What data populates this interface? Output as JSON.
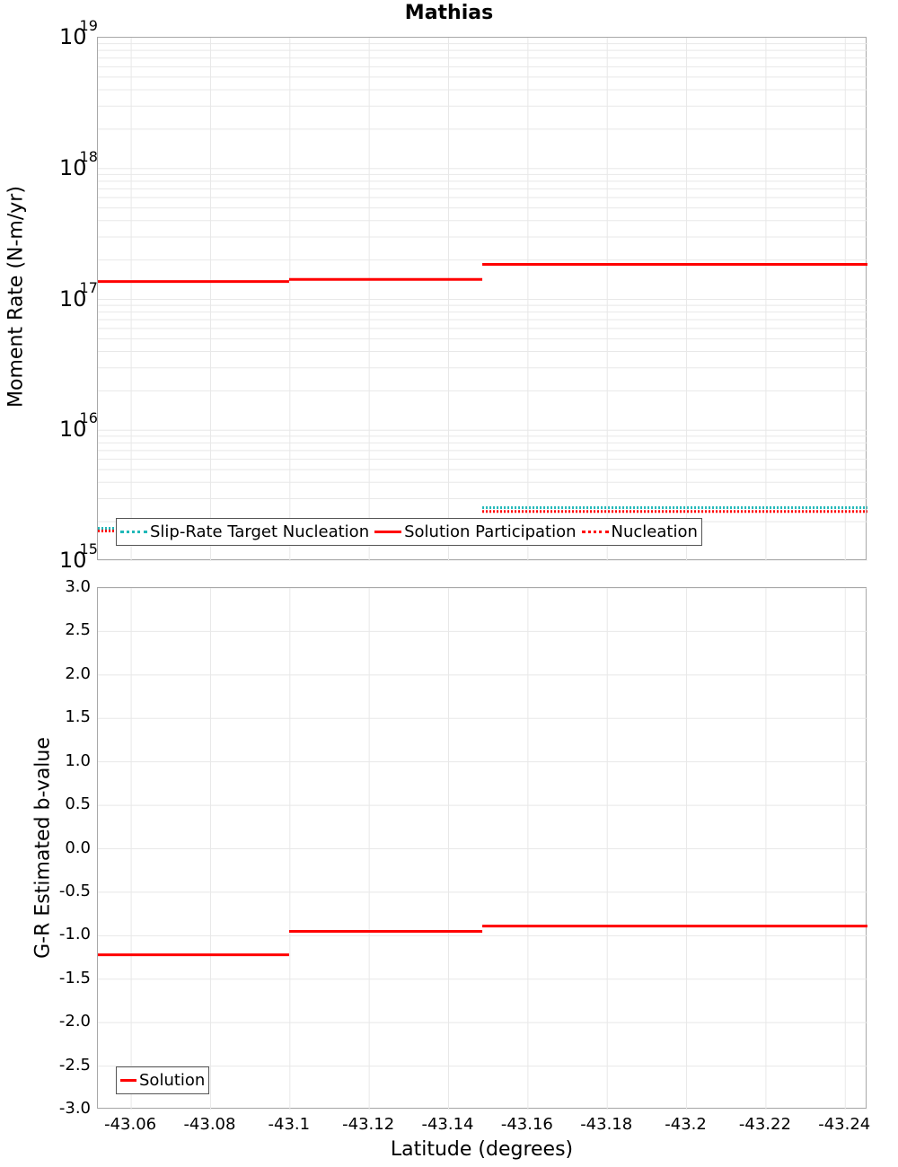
{
  "title": "Mathias",
  "colors": {
    "solution": "#ff0000",
    "target": "#20b8b8",
    "nucleation": "#ff0000",
    "grid": "#e8e8e8",
    "frame": "#a8a8a8"
  },
  "top": {
    "ylabel": "Moment Rate (N-m/yr)",
    "yticks": [
      {
        "base": "10",
        "exp": "19"
      },
      {
        "base": "10",
        "exp": "18"
      },
      {
        "base": "10",
        "exp": "17"
      },
      {
        "base": "10",
        "exp": "16"
      },
      {
        "base": "10",
        "exp": "15"
      }
    ],
    "legend": {
      "target": "Slip-Rate Target Nucleation",
      "participation": "Solution Participation",
      "nucleation": "Nucleation"
    }
  },
  "bottom": {
    "ylabel": "G-R Estimated b-value",
    "yticks": [
      "3.0",
      "2.5",
      "2.0",
      "1.5",
      "1.0",
      "0.5",
      "0.0",
      "-0.5",
      "-1.0",
      "-1.5",
      "-2.0",
      "-2.5",
      "-3.0"
    ],
    "legend": {
      "solution": "Solution"
    }
  },
  "xaxis": {
    "label": "Latitude (degrees)",
    "ticks": [
      "-43.06",
      "-43.08",
      "-43.1",
      "-43.12",
      "-43.14",
      "-43.16",
      "-43.18",
      "-43.2",
      "-43.22",
      "-43.24"
    ]
  },
  "chart_data": [
    {
      "type": "line",
      "title": "Mathias",
      "xlabel": "Latitude (degrees)",
      "ylabel": "Moment Rate (N-m/yr)",
      "yscale": "log",
      "xlim": [
        -43.0516,
        -43.2456
      ],
      "ylim": [
        1000000000000000.0,
        1e+19
      ],
      "grid": true,
      "legend_position": "lower left",
      "series": [
        {
          "name": "Solution Participation",
          "style": "solid red step",
          "segments": [
            {
              "x": [
                -43.0516,
                -43.0998
              ],
              "y": 1.37e+17
            },
            {
              "x": [
                -43.0998,
                -43.1485
              ],
              "y": 1.42e+17
            },
            {
              "x": [
                -43.1485,
                -43.2456
              ],
              "y": 1.85e+17
            }
          ]
        },
        {
          "name": "Slip-Rate Target Nucleation",
          "style": "dotted cyan step",
          "segments": [
            {
              "x": [
                -43.0516,
                -43.1485
              ],
              "y": 1740000000000000.0
            },
            {
              "x": [
                -43.1485,
                -43.2456
              ],
              "y": 2500000000000000.0
            }
          ]
        },
        {
          "name": "Nucleation",
          "style": "dotted red step",
          "segments": [
            {
              "x": [
                -43.0516,
                -43.1485
              ],
              "y": 1740000000000000.0
            },
            {
              "x": [
                -43.1485,
                -43.2456
              ],
              "y": 2450000000000000.0
            }
          ]
        }
      ]
    },
    {
      "type": "line",
      "xlabel": "Latitude (degrees)",
      "ylabel": "G-R Estimated b-value",
      "xlim": [
        -43.0516,
        -43.2456
      ],
      "ylim": [
        -3.0,
        3.0
      ],
      "grid": true,
      "legend_position": "lower left",
      "series": [
        {
          "name": "Solution",
          "style": "solid red step",
          "segments": [
            {
              "x": [
                -43.0516,
                -43.0998
              ],
              "y": -1.22
            },
            {
              "x": [
                -43.0998,
                -43.1485
              ],
              "y": -0.95
            },
            {
              "x": [
                -43.1485,
                -43.2456
              ],
              "y": -0.89
            }
          ]
        }
      ]
    }
  ]
}
